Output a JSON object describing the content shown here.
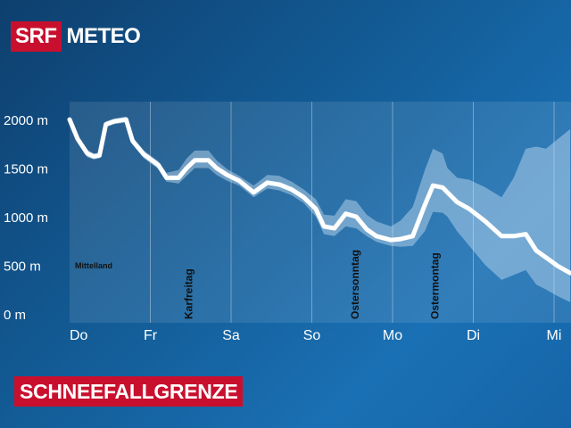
{
  "brand": {
    "srf": "SRF",
    "meteo": "METEO"
  },
  "chart_title": "SCHNEEFALLGRENZE",
  "chart_data": {
    "type": "area",
    "title": "SCHNEEFALLGRENZE",
    "region_label": "Mittelland",
    "y_unit": "m",
    "ylim": [
      0,
      2200
    ],
    "yticks": [
      {
        "value": 0,
        "label": "0 m"
      },
      {
        "value": 500,
        "label": "500 m"
      },
      {
        "value": 1000,
        "label": "1000 m"
      },
      {
        "value": 1500,
        "label": "1500 m"
      },
      {
        "value": 2000,
        "label": "2000 m"
      }
    ],
    "days": [
      "Do",
      "Fr",
      "Sa",
      "So",
      "Mo",
      "Di",
      "Mi"
    ],
    "xlim": [
      0,
      6.2
    ],
    "holidays": [
      {
        "label": "Karfreitag",
        "x": 1.52
      },
      {
        "label": "Ostersonntag",
        "x": 3.58
      },
      {
        "label": "Ostermontag",
        "x": 4.57
      }
    ],
    "series": [
      {
        "name": "Schneefallgrenze",
        "x": [
          0,
          0.1,
          0.22,
          0.3,
          0.37,
          0.45,
          0.55,
          0.7,
          0.78,
          0.92,
          1.1,
          1.2,
          1.35,
          1.45,
          1.55,
          1.72,
          1.82,
          1.95,
          2.1,
          2.28,
          2.45,
          2.6,
          2.75,
          2.9,
          3.05,
          3.15,
          3.28,
          3.42,
          3.55,
          3.68,
          3.8,
          3.98,
          4.1,
          4.25,
          4.4,
          4.5,
          4.62,
          4.68,
          4.8,
          4.95,
          5.15,
          5.35,
          5.5,
          5.65,
          5.78,
          5.9,
          6.05,
          6.2
        ],
        "values": [
          2000,
          1800,
          1650,
          1620,
          1630,
          1950,
          1980,
          2000,
          1780,
          1640,
          1530,
          1400,
          1400,
          1500,
          1580,
          1580,
          1500,
          1430,
          1370,
          1250,
          1350,
          1330,
          1280,
          1200,
          1080,
          900,
          880,
          1030,
          1000,
          870,
          800,
          760,
          770,
          800,
          1120,
          1320,
          1300,
          1250,
          1150,
          1080,
          950,
          800,
          800,
          820,
          650,
          580,
          490,
          420
        ]
      }
    ],
    "band_upper": [
      2000,
      1830,
      1690,
      1650,
      1660,
      1980,
      2010,
      2030,
      1820,
      1680,
      1570,
      1450,
      1480,
      1600,
      1680,
      1680,
      1580,
      1490,
      1420,
      1320,
      1430,
      1420,
      1360,
      1280,
      1180,
      1020,
      1010,
      1180,
      1160,
      1020,
      950,
      900,
      960,
      1100,
      1480,
      1700,
      1650,
      1500,
      1400,
      1380,
      1300,
      1200,
      1400,
      1700,
      1720,
      1700,
      1800,
      1900
    ],
    "band_lower": [
      2000,
      1770,
      1610,
      1590,
      1600,
      1920,
      1950,
      1970,
      1740,
      1600,
      1490,
      1360,
      1340,
      1420,
      1500,
      1500,
      1430,
      1370,
      1320,
      1200,
      1290,
      1270,
      1220,
      1140,
      1000,
      820,
      800,
      900,
      880,
      800,
      740,
      700,
      690,
      700,
      850,
      1050,
      1040,
      1000,
      850,
      700,
      500,
      350,
      400,
      450,
      300,
      250,
      180,
      120
    ]
  }
}
